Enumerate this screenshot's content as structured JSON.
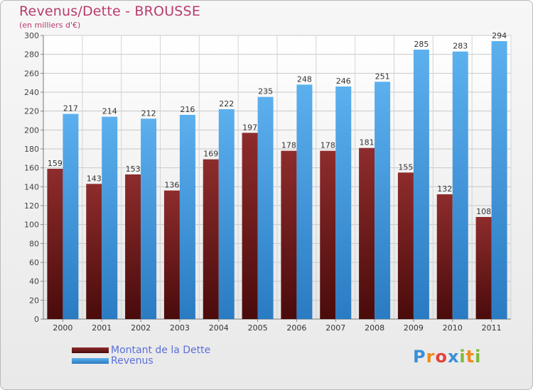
{
  "header": {
    "title": "Revenus/Dette - BROUSSE",
    "subtitle": "(en milliers d'€)"
  },
  "chart_data": {
    "type": "bar",
    "categories": [
      "2000",
      "2001",
      "2002",
      "2003",
      "2004",
      "2005",
      "2006",
      "2007",
      "2008",
      "2009",
      "2010",
      "2011"
    ],
    "series": [
      {
        "name": "Montant de la Dette",
        "color": "#7a1e1e",
        "values": [
          159,
          143,
          153,
          136,
          169,
          197,
          178,
          178,
          181,
          155,
          132,
          108
        ]
      },
      {
        "name": "Revenus",
        "color": "#3f9be0",
        "values": [
          217,
          214,
          212,
          216,
          222,
          235,
          248,
          246,
          251,
          285,
          283,
          294
        ]
      }
    ],
    "ylim": [
      0,
      300
    ],
    "yticks": [
      0,
      20,
      40,
      60,
      80,
      100,
      120,
      140,
      160,
      180,
      200,
      220,
      240,
      260,
      280,
      300
    ],
    "grid": true,
    "legend_position": "bottom-left",
    "data_labels": true
  },
  "logo": {
    "letters": [
      "P",
      "r",
      "o",
      "x",
      "i",
      "t",
      "i"
    ],
    "colors": [
      "#3a8fd8",
      "#f08a1c",
      "#e2453c",
      "#3a8fd8",
      "#7cb93a",
      "#f08a1c",
      "#7cb93a"
    ]
  }
}
